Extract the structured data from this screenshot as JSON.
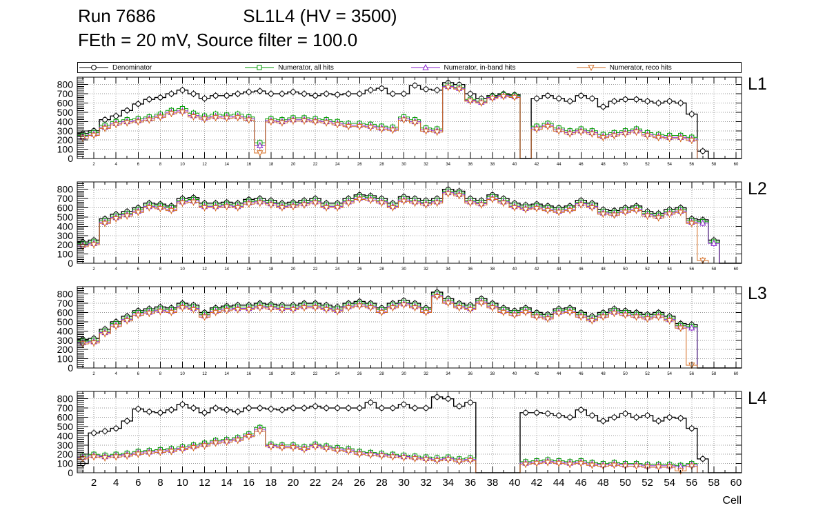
{
  "header": {
    "run": "Run 7686",
    "sl_title": "SL1L4 (HV = 3500)",
    "conditions": "FEth = 20 mV, Source filter = 100.0"
  },
  "legend": [
    {
      "label": "Denominator",
      "marker": "circle",
      "color": "#000000"
    },
    {
      "label": "Numerator, all hits",
      "marker": "square",
      "color": "#009900"
    },
    {
      "label": "Numerator, in-band hits",
      "marker": "triangle-up",
      "color": "#8822cc"
    },
    {
      "label": "Numerator, reco hits",
      "marker": "triangle-down",
      "color": "#d2691e"
    }
  ],
  "axis": {
    "xmin": 0.5,
    "xmax": 60.5,
    "ymax": 880,
    "yticks": [
      0,
      100,
      200,
      300,
      400,
      500,
      600,
      700,
      800
    ],
    "xticks": [
      2,
      4,
      6,
      8,
      10,
      12,
      14,
      16,
      18,
      20,
      22,
      24,
      26,
      28,
      30,
      32,
      34,
      36,
      38,
      40,
      42,
      44,
      46,
      48,
      50,
      52,
      54,
      56,
      58,
      60
    ],
    "xlabel": "Cell",
    "grid": true
  },
  "chart_data": [
    {
      "name": "L1",
      "type": "line",
      "series": [
        {
          "name": "Denominator",
          "values": [
            270,
            300,
            420,
            460,
            520,
            590,
            640,
            660,
            700,
            740,
            700,
            650,
            680,
            680,
            700,
            720,
            730,
            700,
            700,
            720,
            700,
            680,
            700,
            690,
            700,
            700,
            740,
            760,
            700,
            700,
            790,
            750,
            740,
            820,
            800,
            700,
            650,
            680,
            700,
            690,
            0,
            650,
            680,
            650,
            620,
            680,
            650,
            560,
            620,
            640,
            640,
            620,
            600,
            620,
            600,
            480,
            80,
            0,
            0,
            0
          ]
        },
        {
          "name": "Numerator, all hits",
          "values": [
            250,
            280,
            360,
            400,
            420,
            430,
            450,
            480,
            520,
            540,
            490,
            460,
            480,
            470,
            480,
            450,
            170,
            430,
            420,
            440,
            440,
            430,
            420,
            400,
            380,
            380,
            370,
            350,
            340,
            450,
            420,
            330,
            320,
            790,
            770,
            640,
            620,
            670,
            690,
            680,
            0,
            350,
            380,
            330,
            300,
            320,
            300,
            260,
            280,
            300,
            320,
            280,
            260,
            250,
            250,
            230,
            0,
            0,
            0,
            0
          ]
        },
        {
          "name": "Numerator, in-band hits",
          "values": [
            235,
            265,
            340,
            380,
            400,
            410,
            430,
            460,
            500,
            515,
            465,
            440,
            455,
            450,
            455,
            430,
            140,
            410,
            400,
            420,
            420,
            410,
            400,
            380,
            360,
            360,
            350,
            330,
            320,
            430,
            400,
            310,
            300,
            780,
            760,
            630,
            610,
            660,
            680,
            670,
            0,
            330,
            360,
            310,
            280,
            300,
            280,
            240,
            260,
            280,
            300,
            260,
            240,
            230,
            230,
            210,
            0,
            0,
            0,
            0
          ]
        },
        {
          "name": "Numerator, reco hits",
          "values": [
            220,
            250,
            325,
            365,
            385,
            395,
            415,
            445,
            485,
            500,
            450,
            425,
            440,
            435,
            440,
            415,
            60,
            395,
            385,
            405,
            405,
            395,
            385,
            365,
            345,
            345,
            335,
            315,
            305,
            415,
            385,
            295,
            285,
            770,
            750,
            620,
            600,
            650,
            670,
            660,
            0,
            315,
            345,
            295,
            265,
            285,
            265,
            225,
            245,
            265,
            285,
            245,
            225,
            215,
            215,
            195,
            0,
            0,
            0,
            0
          ]
        }
      ]
    },
    {
      "name": "L2",
      "type": "line",
      "series": [
        {
          "name": "Denominator",
          "values": [
            230,
            250,
            480,
            530,
            560,
            600,
            650,
            640,
            620,
            700,
            710,
            650,
            650,
            660,
            650,
            690,
            700,
            680,
            650,
            660,
            680,
            700,
            650,
            650,
            700,
            740,
            730,
            700,
            650,
            720,
            700,
            680,
            700,
            800,
            780,
            700,
            680,
            740,
            700,
            650,
            630,
            640,
            620,
            600,
            620,
            680,
            650,
            580,
            570,
            600,
            620,
            560,
            540,
            580,
            600,
            480,
            470,
            250,
            0,
            0
          ]
        },
        {
          "name": "Numerator, all hits",
          "values": [
            210,
            230,
            460,
            510,
            540,
            580,
            630,
            620,
            600,
            680,
            690,
            630,
            630,
            640,
            630,
            670,
            680,
            660,
            630,
            640,
            660,
            680,
            630,
            630,
            680,
            720,
            710,
            680,
            630,
            700,
            680,
            660,
            680,
            780,
            760,
            680,
            660,
            720,
            680,
            630,
            610,
            620,
            600,
            580,
            600,
            660,
            630,
            560,
            550,
            580,
            600,
            540,
            520,
            560,
            580,
            460,
            450,
            230,
            0,
            0
          ]
        },
        {
          "name": "Numerator, in-band hits",
          "values": [
            195,
            215,
            445,
            495,
            525,
            565,
            615,
            605,
            585,
            665,
            675,
            615,
            615,
            625,
            615,
            655,
            665,
            645,
            615,
            625,
            645,
            665,
            615,
            615,
            665,
            705,
            695,
            665,
            615,
            685,
            665,
            645,
            665,
            765,
            745,
            665,
            645,
            705,
            665,
            615,
            595,
            605,
            585,
            565,
            585,
            645,
            615,
            545,
            535,
            565,
            585,
            525,
            505,
            545,
            565,
            445,
            435,
            215,
            0,
            0
          ]
        },
        {
          "name": "Numerator, reco hits",
          "values": [
            180,
            200,
            430,
            480,
            510,
            550,
            600,
            590,
            570,
            650,
            660,
            600,
            600,
            610,
            600,
            640,
            650,
            630,
            600,
            610,
            630,
            650,
            600,
            600,
            650,
            690,
            680,
            650,
            600,
            670,
            650,
            630,
            650,
            750,
            730,
            650,
            630,
            690,
            650,
            600,
            580,
            590,
            570,
            550,
            570,
            630,
            600,
            530,
            520,
            550,
            570,
            510,
            490,
            530,
            550,
            430,
            30,
            0,
            0,
            0
          ]
        }
      ]
    },
    {
      "name": "L3",
      "type": "line",
      "series": [
        {
          "name": "Denominator",
          "values": [
            310,
            320,
            420,
            500,
            560,
            620,
            640,
            660,
            650,
            700,
            680,
            600,
            650,
            670,
            680,
            680,
            700,
            690,
            680,
            680,
            700,
            700,
            680,
            660,
            700,
            720,
            700,
            650,
            700,
            730,
            700,
            650,
            820,
            750,
            700,
            680,
            750,
            700,
            650,
            620,
            650,
            600,
            580,
            640,
            650,
            600,
            560,
            600,
            640,
            620,
            600,
            580,
            600,
            560,
            480,
            470,
            0,
            0,
            0,
            0
          ]
        },
        {
          "name": "Numerator, all hits",
          "values": [
            290,
            300,
            400,
            480,
            540,
            600,
            620,
            640,
            630,
            680,
            660,
            580,
            630,
            650,
            660,
            660,
            680,
            670,
            660,
            660,
            680,
            680,
            660,
            640,
            680,
            700,
            680,
            630,
            680,
            710,
            680,
            630,
            800,
            730,
            680,
            660,
            730,
            680,
            630,
            600,
            630,
            580,
            560,
            620,
            630,
            580,
            540,
            580,
            620,
            600,
            580,
            560,
            580,
            540,
            460,
            450,
            0,
            0,
            0,
            0
          ]
        },
        {
          "name": "Numerator, in-band hits",
          "values": [
            275,
            285,
            385,
            465,
            525,
            585,
            605,
            625,
            615,
            665,
            645,
            565,
            615,
            635,
            645,
            645,
            665,
            655,
            645,
            645,
            665,
            665,
            645,
            625,
            665,
            685,
            665,
            615,
            665,
            695,
            665,
            615,
            785,
            715,
            665,
            645,
            715,
            665,
            615,
            585,
            615,
            565,
            545,
            605,
            615,
            565,
            525,
            565,
            605,
            585,
            565,
            545,
            565,
            525,
            445,
            435,
            0,
            0,
            0,
            0
          ]
        },
        {
          "name": "Numerator, reco hits",
          "values": [
            260,
            270,
            370,
            450,
            510,
            570,
            590,
            610,
            600,
            650,
            630,
            550,
            600,
            620,
            630,
            630,
            650,
            640,
            630,
            630,
            650,
            650,
            630,
            610,
            650,
            670,
            650,
            600,
            650,
            680,
            650,
            600,
            770,
            700,
            650,
            630,
            700,
            650,
            600,
            570,
            600,
            550,
            530,
            590,
            600,
            550,
            510,
            550,
            590,
            570,
            550,
            530,
            550,
            510,
            430,
            30,
            0,
            0,
            0,
            0
          ]
        }
      ]
    },
    {
      "name": "L4",
      "type": "line",
      "series": [
        {
          "name": "Denominator",
          "values": [
            100,
            430,
            450,
            480,
            560,
            690,
            660,
            650,
            680,
            740,
            700,
            650,
            700,
            680,
            660,
            700,
            700,
            690,
            680,
            700,
            700,
            720,
            700,
            700,
            700,
            700,
            760,
            700,
            700,
            740,
            700,
            700,
            820,
            800,
            720,
            760,
            0,
            0,
            0,
            0,
            650,
            650,
            640,
            620,
            600,
            680,
            620,
            560,
            600,
            640,
            600,
            620,
            560,
            600,
            590,
            480,
            150,
            0,
            0,
            0
          ]
        },
        {
          "name": "Numerator, all hits",
          "values": [
            180,
            200,
            190,
            200,
            210,
            230,
            240,
            250,
            260,
            280,
            300,
            320,
            350,
            360,
            380,
            420,
            490,
            310,
            300,
            300,
            280,
            310,
            290,
            270,
            260,
            230,
            220,
            210,
            200,
            190,
            180,
            170,
            160,
            170,
            150,
            160,
            0,
            0,
            0,
            0,
            120,
            130,
            140,
            130,
            120,
            130,
            110,
            100,
            110,
            100,
            100,
            90,
            90,
            90,
            80,
            100,
            0,
            0,
            0,
            0
          ]
        },
        {
          "name": "Numerator, in-band hits",
          "values": [
            165,
            185,
            175,
            185,
            195,
            215,
            225,
            235,
            245,
            265,
            285,
            305,
            335,
            345,
            365,
            405,
            470,
            295,
            285,
            285,
            265,
            295,
            275,
            255,
            245,
            215,
            205,
            195,
            185,
            175,
            165,
            155,
            145,
            155,
            135,
            145,
            0,
            0,
            0,
            0,
            105,
            115,
            125,
            115,
            105,
            115,
            95,
            85,
            95,
            85,
            85,
            75,
            75,
            75,
            65,
            85,
            0,
            0,
            0,
            0
          ]
        },
        {
          "name": "Numerator, reco hits",
          "values": [
            150,
            170,
            160,
            170,
            180,
            200,
            210,
            220,
            230,
            250,
            270,
            290,
            320,
            330,
            350,
            390,
            450,
            280,
            270,
            270,
            250,
            280,
            260,
            240,
            230,
            200,
            190,
            180,
            170,
            160,
            150,
            140,
            130,
            140,
            120,
            130,
            0,
            0,
            0,
            0,
            90,
            100,
            110,
            100,
            90,
            100,
            80,
            70,
            80,
            70,
            70,
            60,
            60,
            60,
            20,
            70,
            0,
            0,
            0,
            0
          ]
        }
      ]
    }
  ]
}
